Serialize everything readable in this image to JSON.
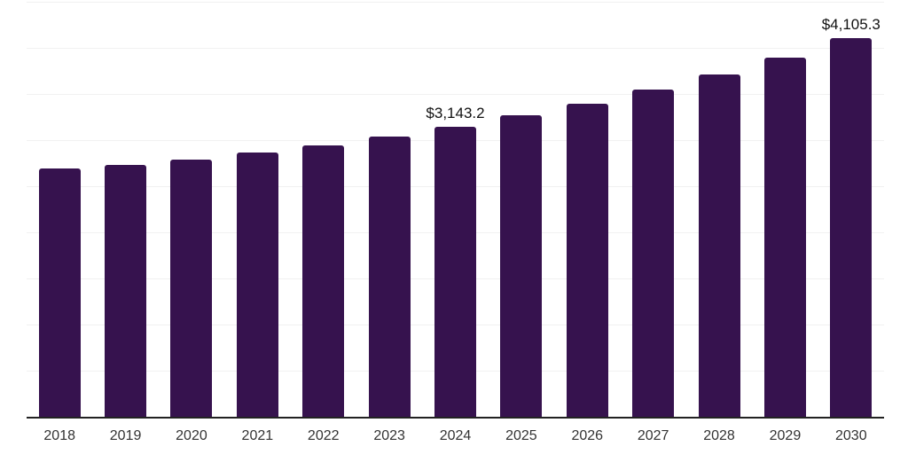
{
  "chart_data": {
    "type": "bar",
    "title": "",
    "xlabel": "",
    "ylabel": "",
    "categories": [
      "2018",
      "2019",
      "2020",
      "2021",
      "2022",
      "2023",
      "2024",
      "2025",
      "2026",
      "2027",
      "2028",
      "2029",
      "2030"
    ],
    "values": [
      2690,
      2733,
      2786,
      2862,
      2946,
      3042,
      3143.2,
      3266,
      3398,
      3548,
      3714,
      3898,
      4105.3
    ],
    "point_labels": [
      "",
      "",
      "",
      "",
      "",
      "",
      "$3,143.2",
      "",
      "",
      "",
      "",
      "",
      "$4,105.3"
    ],
    "ylim": [
      0,
      4500
    ],
    "grid_step": 500,
    "grid": true,
    "legend": false,
    "y_axis_tick_labels_visible": false,
    "colors": {
      "bar": "#36124E",
      "gridline": "#F1F1F1",
      "axis_line": "#222222",
      "tick_label": "#333333",
      "value_label": "#111111",
      "background": "#FFFFFF"
    }
  }
}
